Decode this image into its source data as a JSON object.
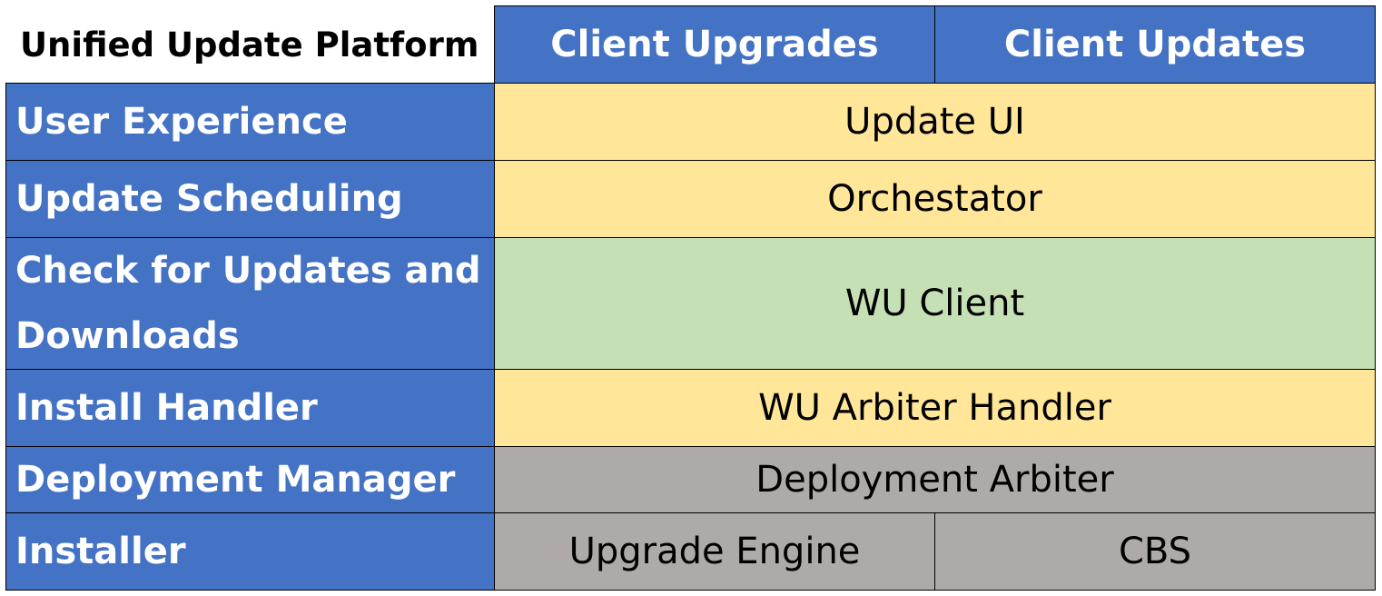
{
  "title": "Unified Update Platform",
  "columns": [
    "Client Upgrades",
    "Client Updates"
  ],
  "rows": [
    {
      "label": "User Experience",
      "cells": [
        "Update UI"
      ]
    },
    {
      "label": "Update Scheduling",
      "cells": [
        "Orchestator"
      ]
    },
    {
      "label": "Check for Updates and Downloads",
      "cells": [
        "WU Client"
      ]
    },
    {
      "label": "Install Handler",
      "cells": [
        "WU Arbiter Handler"
      ]
    },
    {
      "label": "Deployment Manager",
      "cells": [
        "Deployment Arbiter"
      ]
    },
    {
      "label": "Installer",
      "cells": [
        "Upgrade Engine",
        "CBS"
      ]
    }
  ],
  "colors": {
    "header": "#4472C4",
    "yellow": "#FFE699",
    "green": "#C5E0B4",
    "gray": "#AEAAAA"
  }
}
